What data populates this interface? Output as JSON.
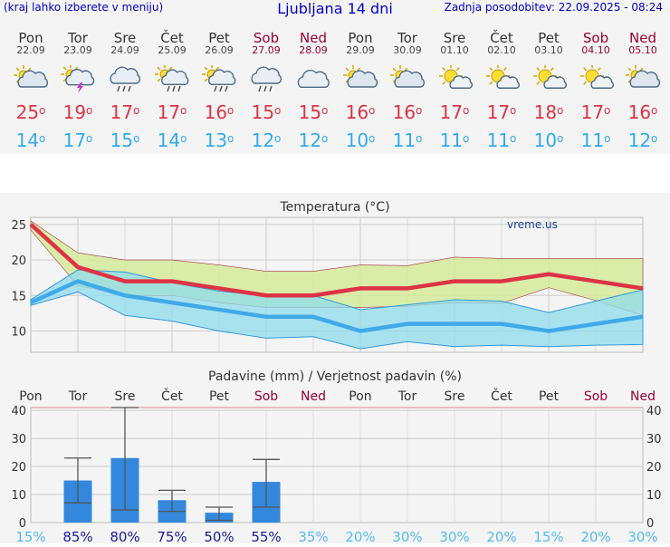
{
  "header": {
    "left_note": "(kraj lahko izberete v meniju)",
    "title": "Ljubljana 14 dni",
    "updated": "Zadnja posodobitev: 22.09.2025 - 08:24"
  },
  "days": [
    {
      "name": "Pon",
      "date": "22.09",
      "weekend": false,
      "icon": "partly-cloudy-icon",
      "tmax": "25",
      "tmin": "14"
    },
    {
      "name": "Tor",
      "date": "23.09",
      "weekend": false,
      "icon": "thunderstorm-icon",
      "tmax": "19",
      "tmin": "17"
    },
    {
      "name": "Sre",
      "date": "24.09",
      "weekend": false,
      "icon": "rain-cloud-icon",
      "tmax": "17",
      "tmin": "15"
    },
    {
      "name": "Čet",
      "date": "25.09",
      "weekend": false,
      "icon": "sun-rain-icon",
      "tmax": "17",
      "tmin": "14"
    },
    {
      "name": "Pet",
      "date": "26.09",
      "weekend": false,
      "icon": "sun-rain-icon",
      "tmax": "16",
      "tmin": "13"
    },
    {
      "name": "Sob",
      "date": "27.09",
      "weekend": true,
      "icon": "rain-cloud-icon",
      "tmax": "15",
      "tmin": "12"
    },
    {
      "name": "Ned",
      "date": "28.09",
      "weekend": true,
      "icon": "cloud-icon",
      "tmax": "15",
      "tmin": "12"
    },
    {
      "name": "Pon",
      "date": "29.09",
      "weekend": false,
      "icon": "partly-cloudy-icon",
      "tmax": "16",
      "tmin": "10"
    },
    {
      "name": "Tor",
      "date": "30.09",
      "weekend": false,
      "icon": "partly-cloudy-icon",
      "tmax": "16",
      "tmin": "11"
    },
    {
      "name": "Sre",
      "date": "01.10",
      "weekend": false,
      "icon": "sunny-cloud-icon",
      "tmax": "17",
      "tmin": "11"
    },
    {
      "name": "Čet",
      "date": "02.10",
      "weekend": false,
      "icon": "sunny-cloud-icon",
      "tmax": "17",
      "tmin": "11"
    },
    {
      "name": "Pet",
      "date": "03.10",
      "weekend": false,
      "icon": "sunny-cloud-icon",
      "tmax": "18",
      "tmin": "10"
    },
    {
      "name": "Sob",
      "date": "04.10",
      "weekend": true,
      "icon": "sunny-cloud-icon",
      "tmax": "17",
      "tmin": "11"
    },
    {
      "name": "Ned",
      "date": "05.10",
      "weekend": true,
      "icon": "partly-cloudy-icon",
      "tmax": "16",
      "tmin": "12"
    }
  ],
  "colors": {
    "tmax": "#dd3344",
    "tmin": "#33aaee",
    "weekend": "#990033",
    "precip_bar": "#3388dd",
    "max_band": "#d4ea9a",
    "min_band": "#8fdcec",
    "overlap_band": "#88cc99"
  },
  "chart_data": [
    {
      "type": "line",
      "title": "Temperatura (°C)",
      "watermark": "vreme.us",
      "x_count": 14,
      "ylim": [
        7,
        26
      ],
      "yticks": [
        10,
        15,
        20,
        25
      ],
      "grid": true,
      "series": [
        {
          "values": [
            25,
            19,
            17,
            17,
            16,
            15,
            15,
            16,
            16,
            17,
            17,
            18,
            17,
            16
          ]
        },
        {
          "values": [
            14,
            17,
            15,
            14,
            13,
            12,
            12,
            10,
            11,
            11,
            11,
            10,
            11,
            12
          ]
        }
      ],
      "max_band": {
        "upper": [
          25.5,
          21,
          20,
          20,
          19.3,
          18.4,
          18.4,
          19.3,
          19.2,
          20.4,
          20.2,
          20.2,
          20.2,
          20.2
        ],
        "lower": [
          24.2,
          16.4,
          15,
          15,
          14,
          13.3,
          13.3,
          13.3,
          13.5,
          14,
          13.9,
          16.1,
          14.3,
          12.2
        ]
      },
      "min_band": {
        "upper": [
          14.4,
          18.6,
          18.3,
          16.8,
          15.6,
          15,
          15,
          13,
          13.7,
          14.4,
          14.2,
          12.6,
          14.2,
          15.8
        ],
        "lower": [
          13.6,
          15.5,
          12.2,
          11.4,
          10,
          9,
          9.2,
          7.5,
          8.5,
          7.8,
          8,
          7.8,
          8,
          8.1
        ]
      }
    },
    {
      "type": "bar",
      "title": "Padavine (mm) / Verjetnost padavin (%)",
      "categories": [
        "Pon",
        "Tor",
        "Sre",
        "Čet",
        "Pet",
        "Sob",
        "Ned",
        "Pon",
        "Tor",
        "Sre",
        "Čet",
        "Pet",
        "Sob",
        "Ned"
      ],
      "weekend": [
        false,
        false,
        false,
        false,
        false,
        true,
        true,
        false,
        false,
        false,
        false,
        false,
        true,
        true
      ],
      "values": [
        0,
        15,
        23,
        8,
        3.5,
        14.5,
        0,
        0,
        0,
        0,
        0,
        0,
        0,
        0
      ],
      "error_high": [
        null,
        23,
        41,
        11.5,
        5.5,
        22.5,
        null,
        null,
        null,
        null,
        null,
        null,
        null,
        null
      ],
      "error_low": [
        null,
        7,
        4.5,
        4,
        0.8,
        5.5,
        null,
        null,
        null,
        null,
        null,
        null,
        null,
        null
      ],
      "probability": [
        "15%",
        "85%",
        "80%",
        "75%",
        "50%",
        "55%",
        "35%",
        "20%",
        "30%",
        "30%",
        "20%",
        "15%",
        "20%",
        "30%"
      ],
      "ylim": [
        0,
        41
      ],
      "yticks": [
        0,
        10,
        20,
        30,
        40
      ]
    }
  ]
}
